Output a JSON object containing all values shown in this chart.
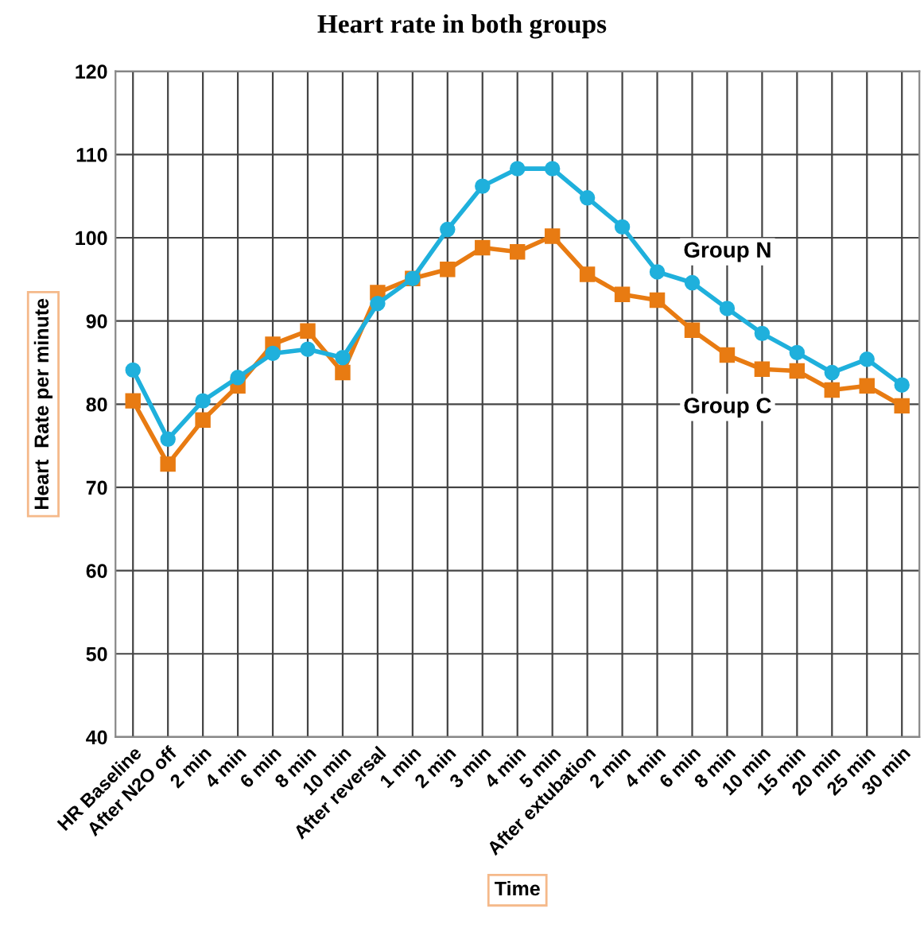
{
  "chart_data": {
    "type": "line",
    "title": "Heart rate in both groups",
    "xlabel": "Time",
    "ylabel": "Heart  Rate per minute",
    "categories": [
      "HR Baseline",
      "After N2O off",
      "2 min",
      "4 min",
      "6 min",
      "8 min",
      "10 min",
      "After reversal",
      "1 min",
      "2 min",
      "3 min",
      "4 min",
      "5 min",
      "After extubation",
      "2 min",
      "4 min",
      "6 min",
      "8 min",
      "10 min",
      "15 min",
      "20 min",
      "25 min",
      "30 min"
    ],
    "series": [
      {
        "name": "Group N",
        "color": "#1fb0dc",
        "marker": "circle",
        "values": [
          84.1,
          75.8,
          80.4,
          83.2,
          86.1,
          86.6,
          85.6,
          92.1,
          95.1,
          101,
          106.2,
          108.3,
          108.3,
          104.8,
          101.3,
          95.9,
          94.6,
          91.5,
          88.5,
          86.2,
          83.8,
          85.4,
          82.3
        ]
      },
      {
        "name": "Group C",
        "color": "#e87b12",
        "marker": "square",
        "values": [
          80.4,
          72.8,
          78.1,
          82.2,
          87.2,
          88.8,
          83.8,
          93.4,
          95.1,
          96.2,
          98.8,
          98.3,
          100.2,
          95.6,
          93.2,
          92.5,
          88.9,
          85.9,
          84.2,
          84,
          81.7,
          82.2,
          79.8
        ]
      }
    ],
    "ylim": [
      40,
      120
    ],
    "yticks": [
      40,
      50,
      60,
      70,
      80,
      90,
      100,
      110,
      120
    ],
    "grid": true,
    "line_style": "solid",
    "legend": false
  }
}
